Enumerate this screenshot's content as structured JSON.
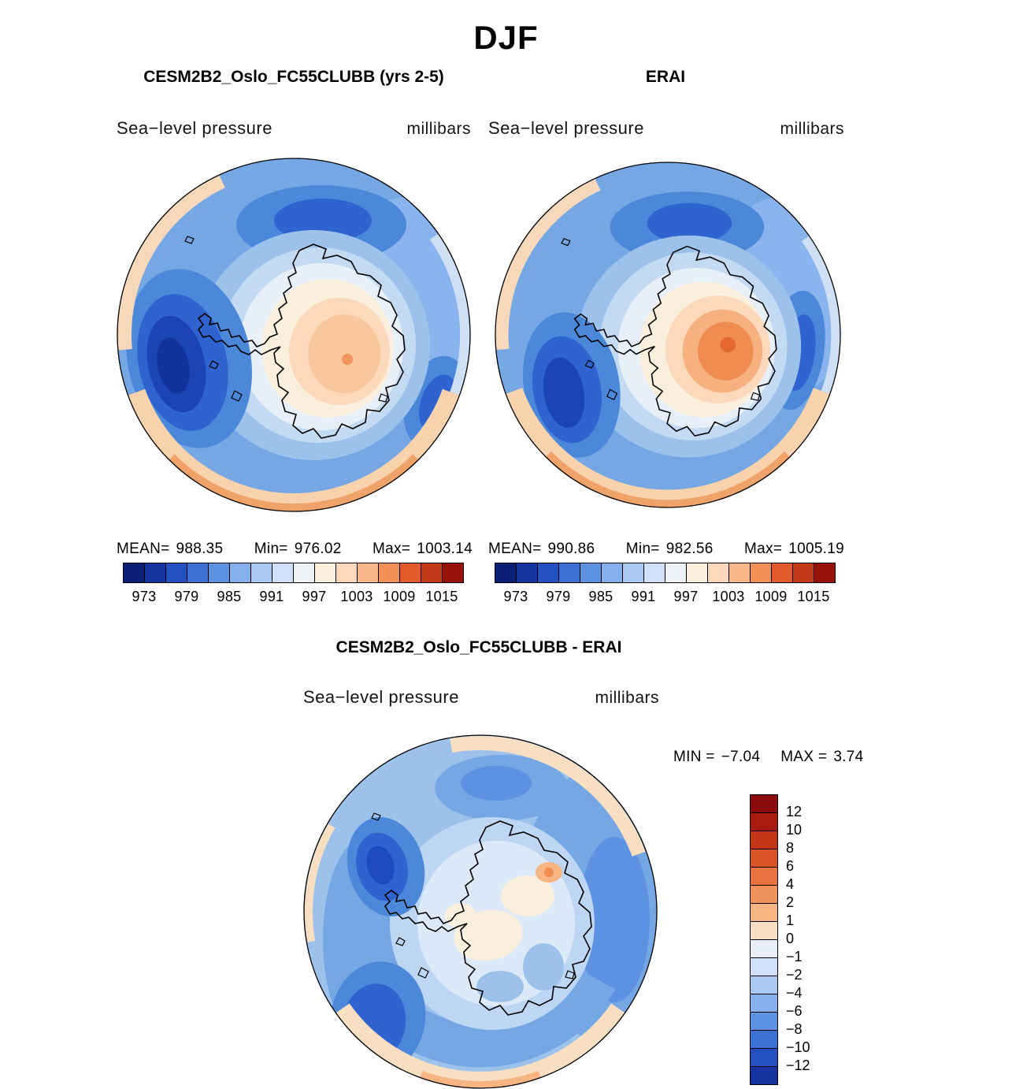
{
  "title": "DJF",
  "panels": {
    "model": {
      "title": "CESM2B2_Oslo_FC55CLUBB (yrs 2-5)",
      "field_label": "Sea−level pressure",
      "units": "millibars",
      "stats": {
        "mean_label": "MEAN=",
        "mean": "988.35",
        "min_label": "Min=",
        "min": "976.02",
        "max_label": "Max=",
        "max": "1003.14"
      },
      "colorbar": {
        "colors": [
          "#0c2079",
          "#16349f",
          "#2450c0",
          "#3c71d4",
          "#5d92e2",
          "#84b0ec",
          "#abcaf3",
          "#cfe0f8",
          "#edf2f6",
          "#faeedd",
          "#fbd9ba",
          "#f7b686",
          "#f19058",
          "#e2592b",
          "#c33a18",
          "#971108"
        ],
        "ticks": [
          "973",
          "979",
          "985",
          "991",
          "997",
          "1003",
          "1009",
          "1015"
        ]
      }
    },
    "obs": {
      "title": "ERAI",
      "field_label": "Sea−level pressure",
      "units": "millibars",
      "stats": {
        "mean_label": "MEAN=",
        "mean": "990.86",
        "min_label": "Min=",
        "min": "982.56",
        "max_label": "Max=",
        "max": "1005.19"
      },
      "colorbar": {
        "colors": [
          "#0c2079",
          "#16349f",
          "#2450c0",
          "#3c71d4",
          "#5d92e2",
          "#84b0ec",
          "#abcaf3",
          "#cfe0f8",
          "#edf2f6",
          "#faeedd",
          "#fbd9ba",
          "#f7b686",
          "#f19058",
          "#e2592b",
          "#c33a18",
          "#971108"
        ],
        "ticks": [
          "973",
          "979",
          "985",
          "991",
          "997",
          "1003",
          "1009",
          "1015"
        ]
      }
    },
    "diff": {
      "title": "CESM2B2_Oslo_FC55CLUBB - ERAI",
      "field_label": "Sea−level pressure",
      "units": "millibars",
      "stats": {
        "min_label": "MIN =",
        "min": "−7.04",
        "max_label": "MAX =",
        "max": "3.74"
      },
      "colorbar": {
        "colors": [
          "#8c0b0b",
          "#a81c10",
          "#c23517",
          "#d85325",
          "#e97240",
          "#f0935c",
          "#f6b583",
          "#fbdfc2",
          "#e8eff9",
          "#cfe0f8",
          "#abcaf3",
          "#84b0ec",
          "#5d92e2",
          "#3c71d4",
          "#2450c0",
          "#16349f"
        ],
        "ticks": [
          "12",
          "10",
          "8",
          "6",
          "4",
          "2",
          "1",
          "0",
          "−1",
          "−2",
          "−4",
          "−6",
          "−8",
          "−10",
          "−12"
        ]
      }
    }
  },
  "chart_data": [
    {
      "type": "heatmap",
      "subtype": "filled_contour_polar_stereographic_map",
      "season": "DJF",
      "title": "CESM2B2_Oslo_FC55CLUBB (yrs 2-5)",
      "variable": "Sea-level pressure",
      "units": "millibars",
      "region": "Antarctica / Southern Ocean",
      "mean": 988.35,
      "min": 976.02,
      "max": 1003.14,
      "contour_levels": [
        970,
        973,
        976,
        979,
        982,
        985,
        988,
        991,
        994,
        997,
        1000,
        1003,
        1006,
        1009,
        1012,
        1015,
        1018
      ],
      "labeled_ticks": [
        973,
        979,
        985,
        991,
        997,
        1003,
        1009,
        1015
      ],
      "legend_position": "bottom"
    },
    {
      "type": "heatmap",
      "subtype": "filled_contour_polar_stereographic_map",
      "season": "DJF",
      "title": "ERAI",
      "variable": "Sea-level pressure",
      "units": "millibars",
      "region": "Antarctica / Southern Ocean",
      "mean": 990.86,
      "min": 982.56,
      "max": 1005.19,
      "contour_levels": [
        970,
        973,
        976,
        979,
        982,
        985,
        988,
        991,
        994,
        997,
        1000,
        1003,
        1006,
        1009,
        1012,
        1015,
        1018
      ],
      "labeled_ticks": [
        973,
        979,
        985,
        991,
        997,
        1003,
        1009,
        1015
      ],
      "legend_position": "bottom"
    },
    {
      "type": "heatmap",
      "subtype": "filled_contour_polar_stereographic_map",
      "season": "DJF",
      "title": "CESM2B2_Oslo_FC55CLUBB - ERAI",
      "variable": "Sea-level pressure difference",
      "units": "millibars",
      "region": "Antarctica / Southern Ocean",
      "min": -7.04,
      "max": 3.74,
      "contour_levels": [
        -12,
        -10,
        -8,
        -6,
        -4,
        -2,
        -1,
        0,
        1,
        2,
        4,
        6,
        8,
        10,
        12
      ],
      "legend_position": "right"
    }
  ]
}
